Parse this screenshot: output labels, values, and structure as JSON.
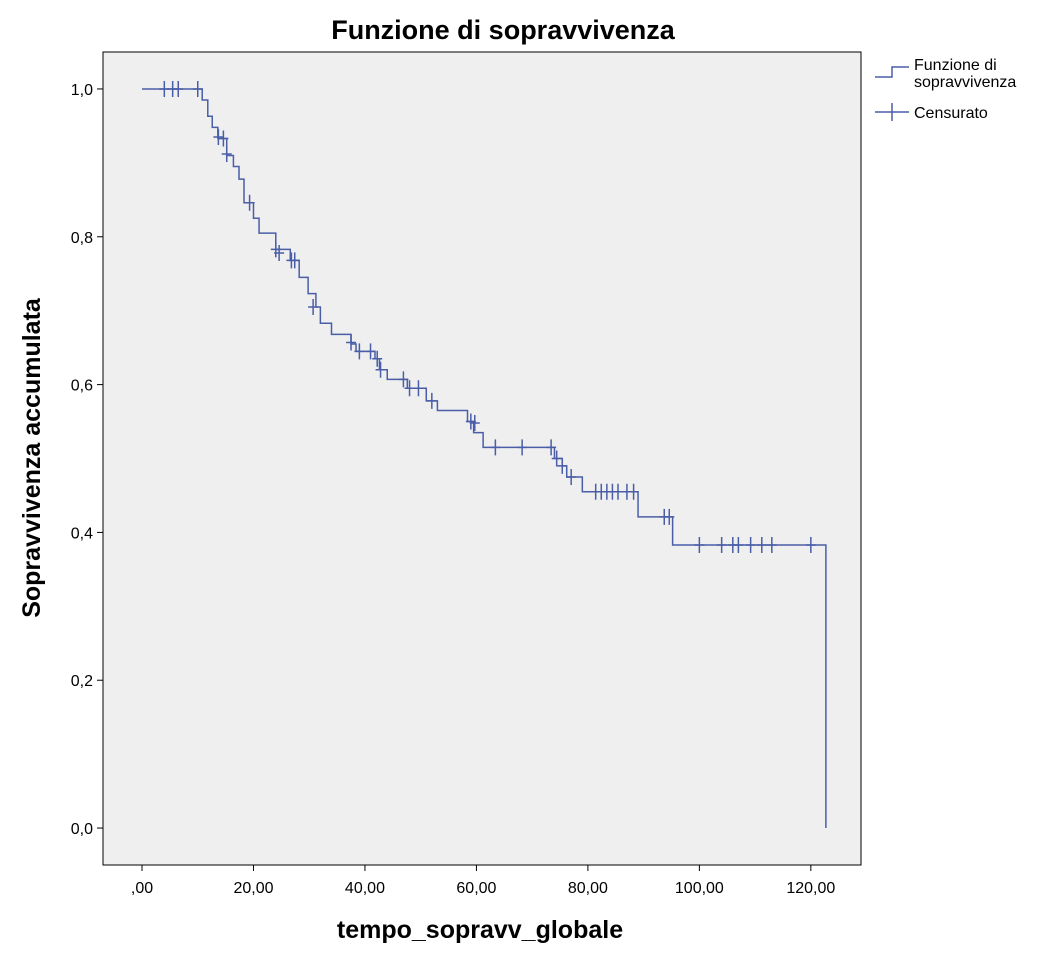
{
  "chart_data": {
    "type": "line",
    "subtype": "kaplan-meier survival step function",
    "title": "Funzione di sopravvivenza",
    "xlabel": "tempo_sopravv_globale",
    "ylabel": "Sopravvivenza accumulata",
    "xlim": [
      -7,
      129
    ],
    "ylim": [
      -0.05,
      1.05
    ],
    "x_ticks": [
      0,
      20,
      40,
      60,
      80,
      100,
      120
    ],
    "x_tick_labels": [
      ",00",
      "20,00",
      "40,00",
      "60,00",
      "80,00",
      "100,00",
      "120,00"
    ],
    "y_ticks": [
      0,
      0.2,
      0.4,
      0.6,
      0.8,
      1.0
    ],
    "y_tick_labels": [
      "0,0",
      "0,2",
      "0,4",
      "0,6",
      "0,8",
      "1,0"
    ],
    "grid": false,
    "legend_position": "right",
    "line_color": "#4a5ea8",
    "plot_background": "#efefef",
    "series": [
      {
        "name": "Funzione di sopravvivenza",
        "kind": "step",
        "points": [
          [
            0,
            1.0
          ],
          [
            10.8,
            0.985
          ],
          [
            11.8,
            0.963
          ],
          [
            12.6,
            0.948
          ],
          [
            13.6,
            0.933
          ],
          [
            15.2,
            0.91
          ],
          [
            16.4,
            0.895
          ],
          [
            17.4,
            0.878
          ],
          [
            18.3,
            0.846
          ],
          [
            20.0,
            0.825
          ],
          [
            21.0,
            0.805
          ],
          [
            24.0,
            0.783
          ],
          [
            26.6,
            0.768
          ],
          [
            28.2,
            0.745
          ],
          [
            29.8,
            0.723
          ],
          [
            31.2,
            0.705
          ],
          [
            32.0,
            0.683
          ],
          [
            34.0,
            0.668
          ],
          [
            37.5,
            0.655
          ],
          [
            38.4,
            0.645
          ],
          [
            41.8,
            0.635
          ],
          [
            42.6,
            0.62
          ],
          [
            44.0,
            0.607
          ],
          [
            47.6,
            0.595
          ],
          [
            51.0,
            0.578
          ],
          [
            53.0,
            0.565
          ],
          [
            58.4,
            0.55
          ],
          [
            59.5,
            0.535
          ],
          [
            61.2,
            0.515
          ],
          [
            74.0,
            0.5
          ],
          [
            75.4,
            0.49
          ],
          [
            76.2,
            0.475
          ],
          [
            79.0,
            0.455
          ],
          [
            89.0,
            0.421
          ],
          [
            95.2,
            0.383
          ],
          [
            122.7,
            0.383
          ],
          [
            122.7,
            0.0
          ]
        ]
      },
      {
        "name": "Censurato",
        "kind": "censor-marks",
        "points": [
          [
            4.0,
            1.0
          ],
          [
            5.5,
            1.0
          ],
          [
            6.5,
            1.0
          ],
          [
            10.0,
            1.0
          ],
          [
            13.7,
            0.935
          ],
          [
            14.6,
            0.933
          ],
          [
            15.2,
            0.912
          ],
          [
            19.3,
            0.846
          ],
          [
            24.0,
            0.783
          ],
          [
            24.6,
            0.778
          ],
          [
            26.8,
            0.768
          ],
          [
            27.4,
            0.768
          ],
          [
            30.7,
            0.705
          ],
          [
            37.5,
            0.657
          ],
          [
            39.0,
            0.645
          ],
          [
            41.0,
            0.645
          ],
          [
            42.2,
            0.635
          ],
          [
            42.8,
            0.62
          ],
          [
            46.9,
            0.607
          ],
          [
            48.0,
            0.595
          ],
          [
            49.6,
            0.595
          ],
          [
            52.0,
            0.578
          ],
          [
            59.0,
            0.55
          ],
          [
            59.7,
            0.548
          ],
          [
            63.4,
            0.515
          ],
          [
            68.2,
            0.515
          ],
          [
            73.4,
            0.515
          ],
          [
            74.4,
            0.5
          ],
          [
            75.4,
            0.49
          ],
          [
            77.0,
            0.475
          ],
          [
            81.4,
            0.455
          ],
          [
            82.4,
            0.455
          ],
          [
            83.4,
            0.455
          ],
          [
            84.4,
            0.455
          ],
          [
            85.4,
            0.455
          ],
          [
            87.0,
            0.455
          ],
          [
            88.2,
            0.455
          ],
          [
            93.7,
            0.421
          ],
          [
            94.6,
            0.421
          ],
          [
            100.0,
            0.383
          ],
          [
            104.0,
            0.383
          ],
          [
            106.0,
            0.383
          ],
          [
            107.0,
            0.383
          ],
          [
            109.2,
            0.383
          ],
          [
            111.2,
            0.383
          ],
          [
            113.0,
            0.383
          ],
          [
            120.0,
            0.383
          ]
        ]
      }
    ],
    "legend": [
      {
        "label_lines": [
          "Funzione di",
          "sopravvivenza"
        ],
        "symbol": "step"
      },
      {
        "label_lines": [
          "Censurato"
        ],
        "symbol": "cross"
      }
    ]
  }
}
